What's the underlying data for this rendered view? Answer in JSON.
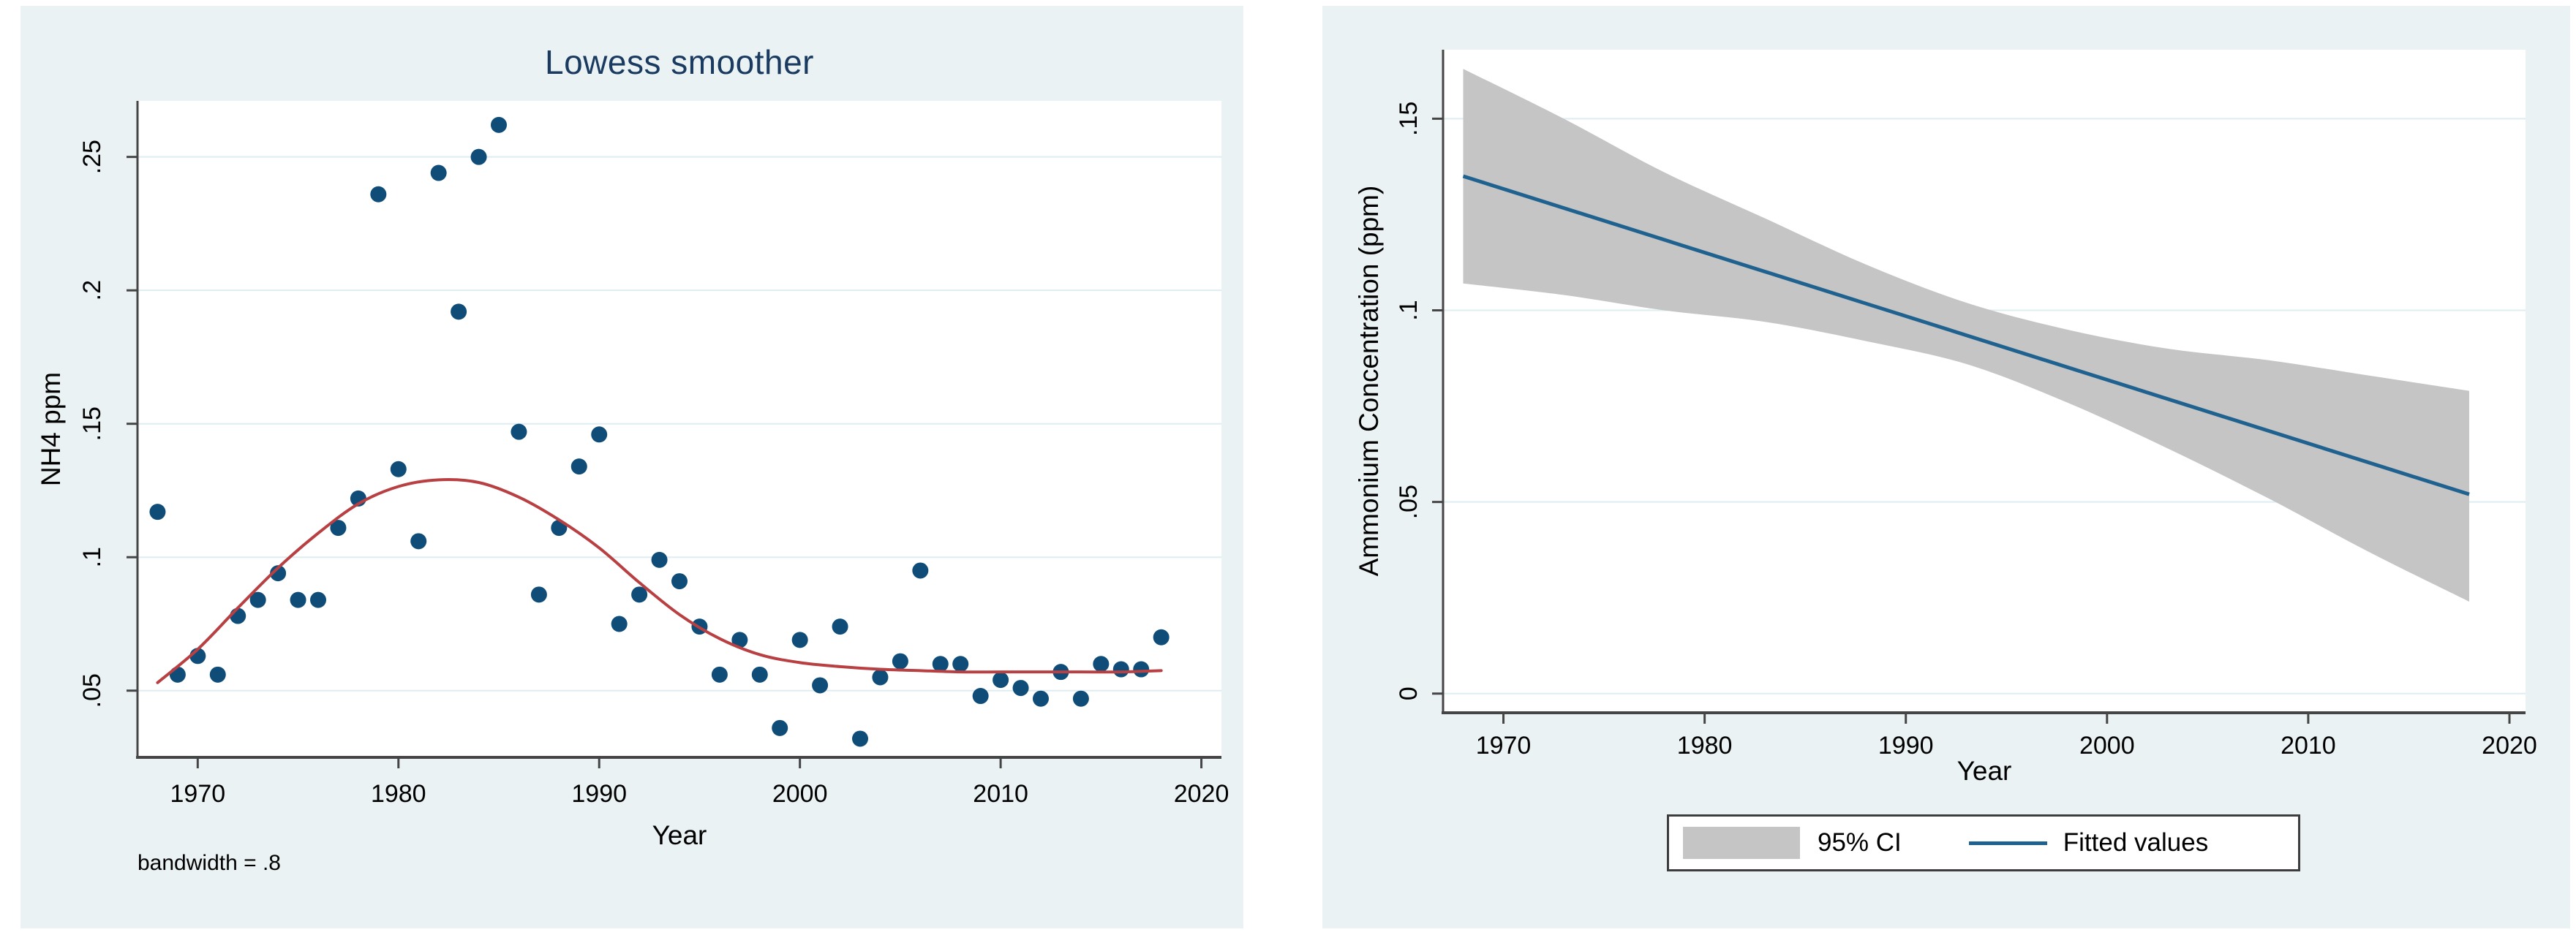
{
  "colors": {
    "panel_bg": "#eaf2f3",
    "plot_bg": "#ffffff",
    "grid": "#ddedf1",
    "axis": "#454545",
    "marker": "#0f4d78",
    "lowess": "#b84043",
    "fit_line": "#20628f",
    "ci_fill": "#c5c5c5",
    "title": "#1a3a60",
    "text": "#000000"
  },
  "chart_data": [
    {
      "id": "lowess-panel",
      "type": "scatter",
      "title": "Lowess smoother",
      "xlabel": "Year",
      "ylabel": "NH4 ppm",
      "note": "bandwidth = .8",
      "xlim": [
        1967,
        2021
      ],
      "ylim": [
        0.025,
        0.271
      ],
      "xticks": [
        1970,
        1980,
        1990,
        2000,
        2010,
        2020
      ],
      "yticks": [
        0.05,
        0.1,
        0.15,
        0.2,
        0.25
      ],
      "ytick_labels": [
        ".05",
        ".1",
        ".15",
        ".2",
        ".25"
      ],
      "grid": true,
      "legend_position": "none",
      "series": [
        {
          "name": "NH4 ppm",
          "type": "scatter",
          "points": [
            [
              1968,
              0.117
            ],
            [
              1969,
              0.056
            ],
            [
              1970,
              0.063
            ],
            [
              1971,
              0.056
            ],
            [
              1972,
              0.078
            ],
            [
              1973,
              0.084
            ],
            [
              1974,
              0.094
            ],
            [
              1975,
              0.084
            ],
            [
              1976,
              0.084
            ],
            [
              1977,
              0.111
            ],
            [
              1978,
              0.122
            ],
            [
              1979,
              0.236
            ],
            [
              1980,
              0.133
            ],
            [
              1981,
              0.106
            ],
            [
              1982,
              0.244
            ],
            [
              1983,
              0.192
            ],
            [
              1984,
              0.25
            ],
            [
              1985,
              0.262
            ],
            [
              1986,
              0.147
            ],
            [
              1987,
              0.086
            ],
            [
              1988,
              0.111
            ],
            [
              1989,
              0.134
            ],
            [
              1990,
              0.146
            ],
            [
              1991,
              0.075
            ],
            [
              1992,
              0.086
            ],
            [
              1993,
              0.099
            ],
            [
              1994,
              0.091
            ],
            [
              1995,
              0.074
            ],
            [
              1996,
              0.056
            ],
            [
              1997,
              0.069
            ],
            [
              1998,
              0.056
            ],
            [
              1999,
              0.036
            ],
            [
              2000,
              0.069
            ],
            [
              2001,
              0.052
            ],
            [
              2002,
              0.074
            ],
            [
              2003,
              0.032
            ],
            [
              2004,
              0.055
            ],
            [
              2005,
              0.061
            ],
            [
              2006,
              0.095
            ],
            [
              2007,
              0.06
            ],
            [
              2008,
              0.06
            ],
            [
              2009,
              0.048
            ],
            [
              2010,
              0.054
            ],
            [
              2011,
              0.051
            ],
            [
              2012,
              0.047
            ],
            [
              2013,
              0.057
            ],
            [
              2014,
              0.047
            ],
            [
              2015,
              0.06
            ],
            [
              2016,
              0.058
            ],
            [
              2017,
              0.058
            ],
            [
              2018,
              0.07
            ]
          ]
        },
        {
          "name": "lowess smooth",
          "type": "line",
          "points": [
            [
              1968,
              0.053
            ],
            [
              1970,
              0.0655
            ],
            [
              1972,
              0.081
            ],
            [
              1974,
              0.096
            ],
            [
              1976,
              0.109
            ],
            [
              1978,
              0.12
            ],
            [
              1980,
              0.1265
            ],
            [
              1982,
              0.129
            ],
            [
              1984,
              0.128
            ],
            [
              1986,
              0.1225
            ],
            [
              1988,
              0.114
            ],
            [
              1990,
              0.1035
            ],
            [
              1992,
              0.0905
            ],
            [
              1994,
              0.0785
            ],
            [
              1996,
              0.0695
            ],
            [
              1998,
              0.0635
            ],
            [
              2000,
              0.0605
            ],
            [
              2002,
              0.059
            ],
            [
              2004,
              0.058
            ],
            [
              2006,
              0.0575
            ],
            [
              2008,
              0.057
            ],
            [
              2010,
              0.057
            ],
            [
              2012,
              0.057
            ],
            [
              2014,
              0.057
            ],
            [
              2016,
              0.057
            ],
            [
              2018,
              0.0575
            ]
          ]
        }
      ]
    },
    {
      "id": "fit-panel",
      "type": "area",
      "title": "",
      "xlabel": "Year",
      "ylabel": "Ammonium Concentration (ppm)",
      "xlim": [
        1967,
        2020.8
      ],
      "ylim": [
        -0.005,
        0.168
      ],
      "xticks": [
        1970,
        1980,
        1990,
        2000,
        2010,
        2020
      ],
      "yticks": [
        0,
        0.05,
        0.1,
        0.15
      ],
      "ytick_labels": [
        "0",
        ".05",
        ".1",
        ".15"
      ],
      "grid": true,
      "ci": {
        "name": "95% CI",
        "x": [
          1968,
          1973,
          1978,
          1983,
          1988,
          1993,
          1998,
          2003,
          2008,
          2013,
          2018
        ],
        "upper": [
          0.163,
          0.15,
          0.136,
          0.124,
          0.112,
          0.102,
          0.095,
          0.09,
          0.087,
          0.083,
          0.079
        ],
        "lower": [
          0.107,
          0.104,
          0.1,
          0.097,
          0.092,
          0.086,
          0.076,
          0.064,
          0.051,
          0.037,
          0.024
        ]
      },
      "fit": {
        "name": "Fitted values",
        "x": [
          1968,
          2018
        ],
        "y": [
          0.135,
          0.052
        ]
      },
      "legend": {
        "position": "bottom",
        "items": [
          {
            "type": "area",
            "label": "95% CI"
          },
          {
            "type": "line",
            "label": "Fitted values"
          }
        ]
      }
    }
  ]
}
